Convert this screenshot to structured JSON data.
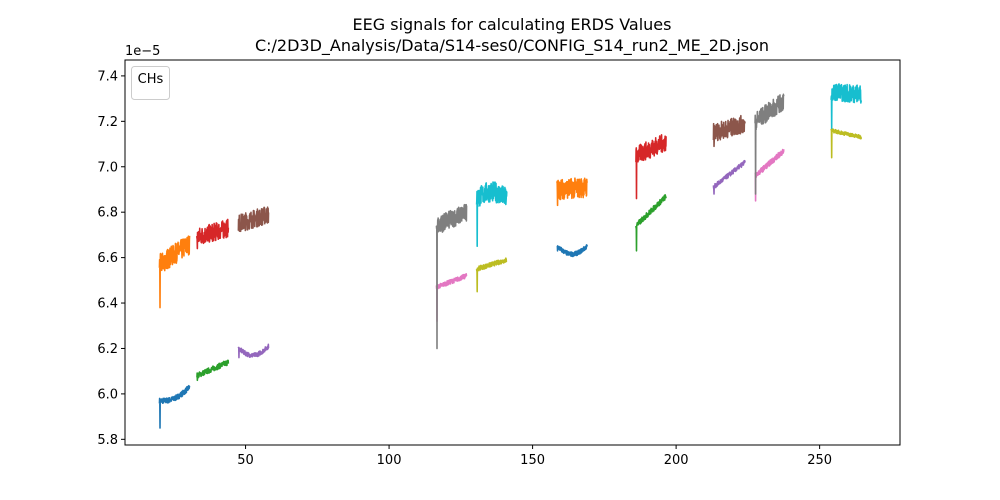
{
  "chart_data": {
    "type": "line",
    "title": "EEG signals for calculating ERDS Values",
    "subtitle": "C:/2D3D_Analysis/Data/S14-ses0/CONFIG_S14_run2_ME_2D.json",
    "xlabel": "",
    "ylabel": "",
    "y_offset_label": "1e−5",
    "xlim": [
      8,
      278
    ],
    "ylim": [
      5.775,
      7.47
    ],
    "x_ticks": [
      50,
      100,
      150,
      200,
      250
    ],
    "y_ticks": [
      5.8,
      6.0,
      6.2,
      6.4,
      6.6,
      6.8,
      7.0,
      7.2,
      7.4
    ],
    "x_tick_labels": [
      "50",
      "100",
      "150",
      "200",
      "250"
    ],
    "y_tick_labels": [
      "5.8",
      "6.0",
      "6.2",
      "6.4",
      "6.6",
      "6.8",
      "7.0",
      "7.2",
      "7.4"
    ],
    "grid": false,
    "legend": {
      "title": "CHs",
      "placement": "top-left",
      "entries": []
    },
    "segments": [
      {
        "color": "#1f77b4",
        "x_start": 20.0,
        "x_end": 30.5,
        "y_start": 5.97,
        "y_end": 6.03,
        "dip": 5.85,
        "noise": 0.012,
        "shape": "curve"
      },
      {
        "color": "#ff7f0e",
        "x_start": 20.0,
        "x_end": 30.5,
        "y_start": 6.57,
        "y_end": 6.66,
        "dip": 6.38,
        "noise": 0.045,
        "shape": "linear"
      },
      {
        "color": "#2ca02c",
        "x_start": 33.0,
        "x_end": 44.0,
        "y_start": 6.08,
        "y_end": 6.14,
        "dip": 6.06,
        "noise": 0.012,
        "shape": "linear"
      },
      {
        "color": "#d62728",
        "x_start": 33.0,
        "x_end": 44.0,
        "y_start": 6.69,
        "y_end": 6.73,
        "dip": 6.64,
        "noise": 0.04,
        "shape": "linear"
      },
      {
        "color": "#9467bd",
        "x_start": 47.5,
        "x_end": 58.0,
        "y_start": 6.2,
        "y_end": 6.21,
        "dip": 6.16,
        "noise": 0.01,
        "shape": "valley"
      },
      {
        "color": "#8c564b",
        "x_start": 47.5,
        "x_end": 58.0,
        "y_start": 6.75,
        "y_end": 6.79,
        "dip": 6.72,
        "noise": 0.04,
        "shape": "linear"
      },
      {
        "color": "#e377c2",
        "x_start": 116.5,
        "x_end": 127.0,
        "y_start": 6.47,
        "y_end": 6.52,
        "dip": 6.32,
        "noise": 0.01,
        "shape": "linear"
      },
      {
        "color": "#7f7f7f",
        "x_start": 116.5,
        "x_end": 127.0,
        "y_start": 6.74,
        "y_end": 6.8,
        "dip": 6.2,
        "noise": 0.04,
        "shape": "linear"
      },
      {
        "color": "#bcbd22",
        "x_start": 130.5,
        "x_end": 141.0,
        "y_start": 6.55,
        "y_end": 6.59,
        "dip": 6.45,
        "noise": 0.01,
        "shape": "linear"
      },
      {
        "color": "#17becf",
        "x_start": 130.5,
        "x_end": 141.0,
        "y_start": 6.86,
        "y_end": 6.86,
        "dip": 6.65,
        "noise": 0.045,
        "shape": "hump"
      },
      {
        "color": "#1f77b4",
        "x_start": 158.5,
        "x_end": 169.0,
        "y_start": 6.65,
        "y_end": 6.65,
        "dip": 6.63,
        "noise": 0.01,
        "shape": "valley"
      },
      {
        "color": "#ff7f0e",
        "x_start": 158.5,
        "x_end": 169.0,
        "y_start": 6.9,
        "y_end": 6.91,
        "dip": 6.83,
        "noise": 0.045,
        "shape": "linear"
      },
      {
        "color": "#2ca02c",
        "x_start": 186.0,
        "x_end": 196.5,
        "y_start": 6.74,
        "y_end": 6.87,
        "dip": 6.63,
        "noise": 0.012,
        "shape": "linear"
      },
      {
        "color": "#d62728",
        "x_start": 186.0,
        "x_end": 196.5,
        "y_start": 7.05,
        "y_end": 7.11,
        "dip": 6.86,
        "noise": 0.04,
        "shape": "linear"
      },
      {
        "color": "#9467bd",
        "x_start": 213.0,
        "x_end": 224.0,
        "y_start": 6.91,
        "y_end": 7.02,
        "dip": 6.88,
        "noise": 0.01,
        "shape": "linear"
      },
      {
        "color": "#8c564b",
        "x_start": 213.0,
        "x_end": 224.0,
        "y_start": 7.15,
        "y_end": 7.19,
        "dip": 7.09,
        "noise": 0.04,
        "shape": "linear"
      },
      {
        "color": "#e377c2",
        "x_start": 227.5,
        "x_end": 237.5,
        "y_start": 6.96,
        "y_end": 7.07,
        "dip": 6.85,
        "noise": 0.012,
        "shape": "linear"
      },
      {
        "color": "#7f7f7f",
        "x_start": 227.5,
        "x_end": 237.5,
        "y_start": 7.2,
        "y_end": 7.29,
        "dip": 6.88,
        "noise": 0.04,
        "shape": "linear"
      },
      {
        "color": "#bcbd22",
        "x_start": 254.0,
        "x_end": 264.5,
        "y_start": 7.16,
        "y_end": 7.13,
        "dip": 7.04,
        "noise": 0.008,
        "shape": "linear"
      },
      {
        "color": "#17becf",
        "x_start": 254.0,
        "x_end": 264.5,
        "y_start": 7.33,
        "y_end": 7.32,
        "dip": 7.17,
        "noise": 0.04,
        "shape": "linear"
      }
    ]
  }
}
